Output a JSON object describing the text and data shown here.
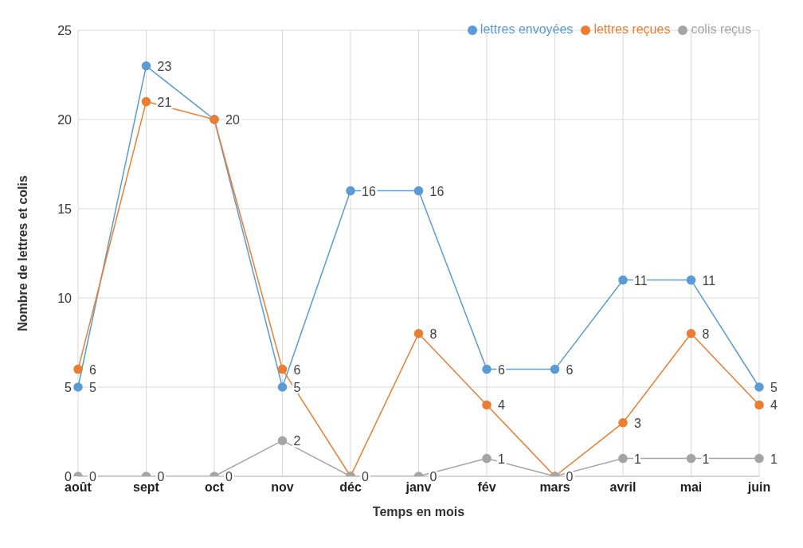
{
  "chart_data": {
    "type": "line",
    "xlabel": "Temps en mois",
    "ylabel": "Nombre de lettres et colis",
    "categories": [
      "août",
      "sept",
      "oct",
      "nov",
      "déc",
      "janv",
      "fév",
      "mars",
      "avril",
      "mai",
      "juin"
    ],
    "series": [
      {
        "name": "lettres envoyées",
        "color": "#5b9bd5",
        "values": [
          5,
          23,
          20,
          5,
          16,
          16,
          6,
          6,
          11,
          11,
          5
        ],
        "value_labels": [
          "5",
          "23",
          "20",
          "5",
          "16",
          "16",
          "6",
          "6",
          "11",
          "11",
          "5"
        ]
      },
      {
        "name": "lettres reçues",
        "color": "#ed7d31",
        "values": [
          6,
          21,
          20,
          6,
          0,
          8,
          4,
          0,
          3,
          8,
          4
        ],
        "value_labels": [
          "6",
          "21",
          null,
          "6",
          "0",
          "8",
          "4",
          "0",
          "3",
          "8",
          "4"
        ]
      },
      {
        "name": "colis reçus",
        "color": "#a5a5a5",
        "values": [
          0,
          0,
          0,
          2,
          0,
          0,
          1,
          0,
          1,
          1,
          1
        ],
        "value_labels": [
          "0",
          "0",
          "0",
          "2",
          null,
          "0",
          "1",
          null,
          "1",
          "1",
          "1"
        ]
      }
    ],
    "ylim": [
      0,
      25
    ],
    "yticks": [
      0,
      5,
      10,
      15,
      20,
      25
    ],
    "grid": true,
    "legend": "top right",
    "marker": "circle",
    "line_style": "solid"
  }
}
